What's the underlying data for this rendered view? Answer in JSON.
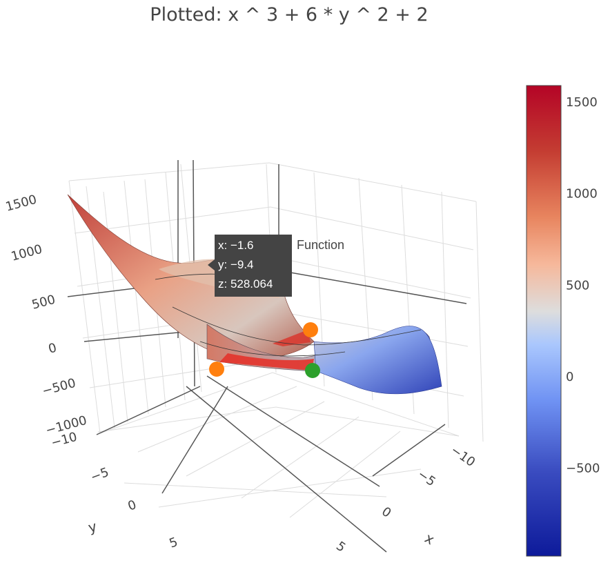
{
  "chart_data": {
    "type": "surface",
    "title": "Plotted: x ^ 3 + 6 * y ^ 2 + 2",
    "function": "x ^ 3 + 6 * y ^ 2 + 2",
    "x_range": [
      -10,
      10
    ],
    "y_range": [
      -10,
      10
    ],
    "z_range": [
      -1000,
      1600
    ],
    "x_axis": {
      "title": "x",
      "ticks": [
        "−10",
        "−5",
        "0",
        "5"
      ]
    },
    "y_axis": {
      "title": "y",
      "ticks": [
        "−10",
        "−5",
        "0",
        "5"
      ]
    },
    "z_axis": {
      "title": "",
      "ticks": [
        "−1000",
        "−500",
        "0",
        "500",
        "1000",
        "1500"
      ]
    },
    "colorscale": [
      "#0d1a9a",
      "#3a4cc0",
      "#6f92f3",
      "#aac7fd",
      "#dddddd",
      "#f6b89b",
      "#e8855f",
      "#c43d32",
      "#b40426"
    ],
    "colorbar": {
      "ticks": [
        "1500",
        "1000",
        "500",
        "0",
        "−500"
      ],
      "tick_values": [
        1500,
        1000,
        500,
        0,
        -500
      ],
      "min": -980,
      "max": 1590
    },
    "markers": [
      {
        "name": "orange-point-1",
        "color": "#ff7f0e"
      },
      {
        "name": "orange-point-2",
        "color": "#ff7f0e"
      },
      {
        "name": "green-point",
        "color": "#2ca02c"
      }
    ],
    "hover": {
      "lines": [
        "x: −1.6",
        "y: −9.4",
        "z: 528.064"
      ],
      "trace_name": "Function"
    },
    "grid": true,
    "legend": "none"
  }
}
